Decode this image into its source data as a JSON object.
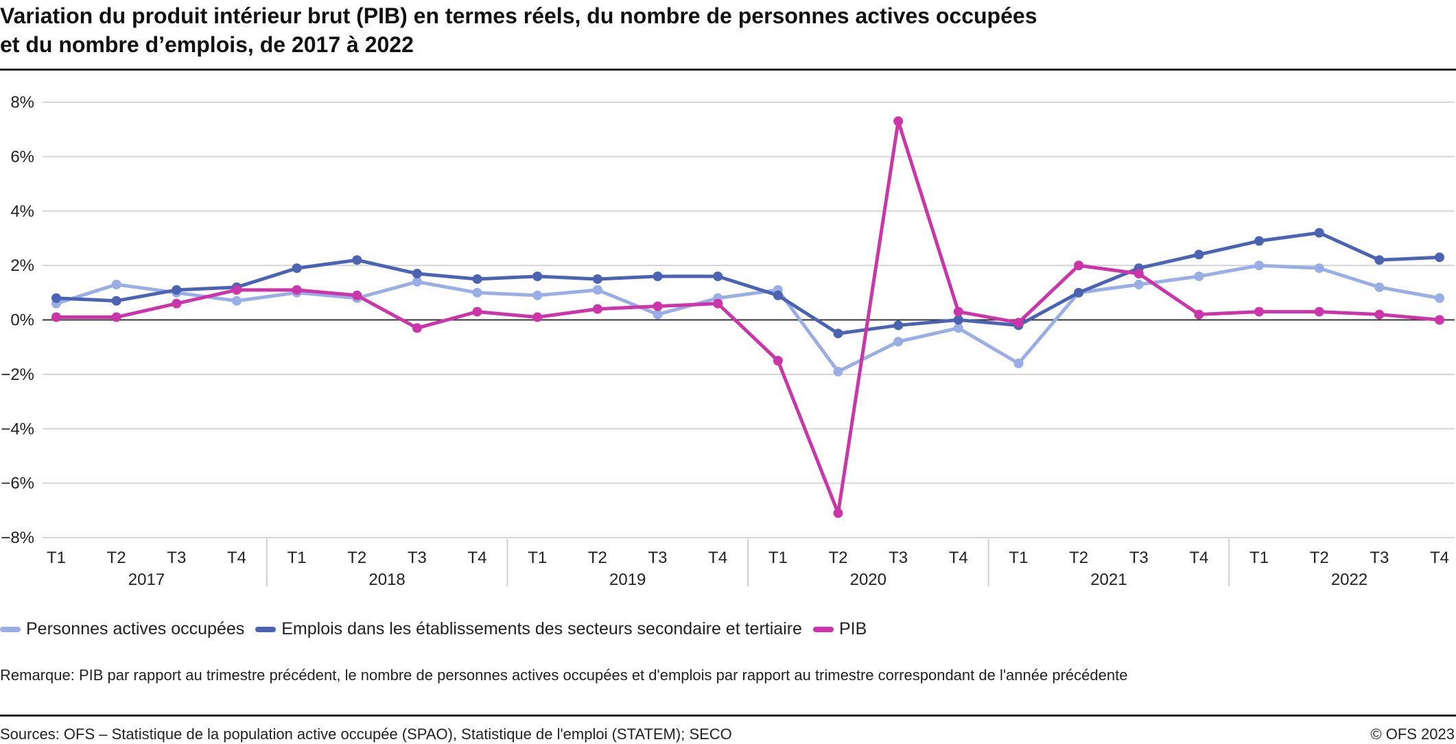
{
  "title_lines": [
    "Variation du produit intérieur brut (PIB) en termes réels, du nombre de personnes actives occupées",
    "et du nombre d’emplois, de 2017 à 2022"
  ],
  "remark": "Remarque: PIB par rapport au trimestre précédent, le nombre de personnes actives occupées et d'emplois par rapport au trimestre correspondant de l'année précédente",
  "sources": "Sources: OFS – Statistique de la population active occupée (SPAO), Statistique de l'emploi (STATEM); SECO",
  "copyright": "© OFS 2023",
  "chart_data": {
    "type": "line",
    "title": "Variation du produit intérieur brut (PIB) en termes réels, du nombre de personnes actives occupées et du nombre d’emplois, de 2017 à 2022",
    "xlabel": "",
    "ylabel": "",
    "ylim": [
      -8,
      8
    ],
    "yticks": [
      8,
      6,
      4,
      2,
      0,
      -2,
      -4,
      -6,
      -8
    ],
    "ytick_labels": [
      "8%",
      "6%",
      "4%",
      "2%",
      "0%",
      "−2%",
      "−4%",
      "−6%",
      "−8%"
    ],
    "grid": true,
    "legend_position": "bottom-left",
    "quarters": [
      "T1",
      "T2",
      "T3",
      "T4"
    ],
    "years": [
      "2017",
      "2018",
      "2019",
      "2020",
      "2021",
      "2022"
    ],
    "x": [
      "2017 T1",
      "2017 T2",
      "2017 T3",
      "2017 T4",
      "2018 T1",
      "2018 T2",
      "2018 T3",
      "2018 T4",
      "2019 T1",
      "2019 T2",
      "2019 T3",
      "2019 T4",
      "2020 T1",
      "2020 T2",
      "2020 T3",
      "2020 T4",
      "2021 T1",
      "2021 T2",
      "2021 T3",
      "2021 T4",
      "2022 T1",
      "2022 T2",
      "2022 T3",
      "2022 T4"
    ],
    "series": [
      {
        "name": "Personnes actives occupées",
        "color": "#9aaee6",
        "values": [
          0.6,
          1.3,
          1.0,
          0.7,
          1.0,
          0.8,
          1.4,
          1.0,
          0.9,
          1.1,
          0.2,
          0.8,
          1.1,
          -1.9,
          -0.8,
          -0.3,
          -1.6,
          1.0,
          1.3,
          1.6,
          2.0,
          1.9,
          1.2,
          0.8
        ]
      },
      {
        "name": "Emplois dans les établissements des secteurs secondaire et tertiaire",
        "color": "#4a63b3",
        "values": [
          0.8,
          0.7,
          1.1,
          1.2,
          1.9,
          2.2,
          1.7,
          1.5,
          1.6,
          1.5,
          1.6,
          1.6,
          0.9,
          -0.5,
          -0.2,
          0.0,
          -0.2,
          1.0,
          1.9,
          2.4,
          2.9,
          3.2,
          2.2,
          2.3
        ]
      },
      {
        "name": "PIB",
        "color": "#cc35aa",
        "values": [
          0.1,
          0.1,
          0.6,
          1.1,
          1.1,
          0.9,
          -0.3,
          0.3,
          0.1,
          0.4,
          0.5,
          0.6,
          -1.5,
          -7.1,
          7.3,
          0.3,
          -0.1,
          2.0,
          1.7,
          0.2,
          0.3,
          0.3,
          0.2,
          0.0
        ]
      }
    ]
  }
}
